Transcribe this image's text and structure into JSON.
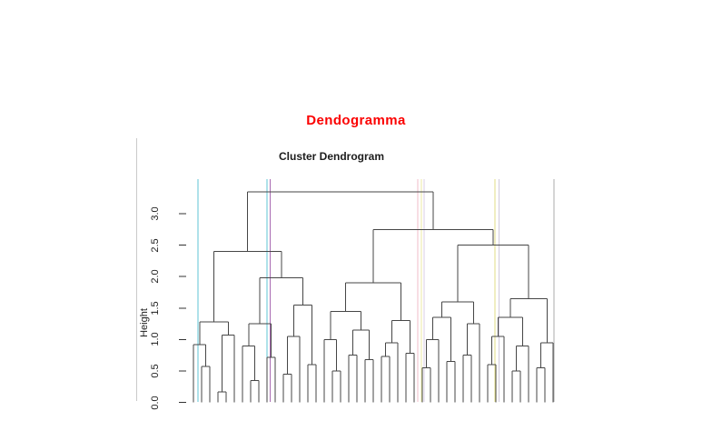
{
  "page": {
    "red_title": "Dendogramma"
  },
  "plot": {
    "title": "Cluster Dendrogram",
    "ylabel": "Height"
  },
  "chart_data": {
    "type": "dendrogram",
    "title": "Cluster Dendrogram",
    "ylabel": "Height",
    "ylim": [
      0,
      3.5
    ],
    "yticks": [
      0,
      0.5,
      1,
      1.5,
      2,
      2.5,
      3
    ],
    "ytick_labels": [
      "0.0",
      "0.5",
      "1.0",
      "1.5",
      "2.0",
      "2.5",
      "3.0"
    ],
    "n_leaves": 45,
    "leaf_labels_visible": false,
    "grid": false,
    "line_color": "#464646",
    "tick_color": "#333333",
    "title_color": "#1c1c1c",
    "red_heading_color": "#fb0000",
    "root_height": 3.35,
    "tree": {
      "h": 3.35,
      "c": [
        {
          "h": 2.4,
          "c": [
            {
              "h": 1.28,
              "c": [
                {
                  "h": 0.92,
                  "c": [
                    1,
                    {
                      "h": 0.57,
                      "c": [
                        2,
                        3
                      ]
                    }
                  ]
                },
                {
                  "h": 1.07,
                  "c": [
                    {
                      "h": 0.17,
                      "c": [
                        4,
                        5
                      ]
                    },
                    6
                  ]
                }
              ]
            },
            {
              "h": 1.98,
              "c": [
                {
                  "h": 1.25,
                  "c": [
                    {
                      "h": 0.9,
                      "c": [
                        7,
                        {
                          "h": 0.35,
                          "c": [
                            8,
                            9
                          ]
                        }
                      ]
                    },
                    {
                      "h": 0.72,
                      "c": [
                        10,
                        11
                      ]
                    }
                  ]
                },
                {
                  "h": 1.55,
                  "c": [
                    {
                      "h": 1.05,
                      "c": [
                        {
                          "h": 0.45,
                          "c": [
                            12,
                            13
                          ]
                        },
                        14
                      ]
                    },
                    {
                      "h": 0.6,
                      "c": [
                        15,
                        16
                      ]
                    }
                  ]
                }
              ]
            }
          ]
        },
        {
          "h": 2.75,
          "c": [
            {
              "h": 1.9,
              "c": [
                {
                  "h": 1.45,
                  "c": [
                    {
                      "h": 1.0,
                      "c": [
                        17,
                        {
                          "h": 0.5,
                          "c": [
                            18,
                            19
                          ]
                        }
                      ]
                    },
                    {
                      "h": 1.15,
                      "c": [
                        {
                          "h": 0.75,
                          "c": [
                            20,
                            21
                          ]
                        },
                        {
                          "h": 0.68,
                          "c": [
                            22,
                            23
                          ]
                        }
                      ]
                    }
                  ]
                },
                {
                  "h": 1.3,
                  "c": [
                    {
                      "h": 0.95,
                      "c": [
                        {
                          "h": 0.73,
                          "c": [
                            24,
                            25
                          ]
                        },
                        26
                      ]
                    },
                    {
                      "h": 0.78,
                      "c": [
                        27,
                        28
                      ]
                    }
                  ]
                }
              ]
            },
            {
              "h": 2.5,
              "c": [
                {
                  "h": 1.6,
                  "c": [
                    {
                      "h": 1.35,
                      "c": [
                        {
                          "h": 1.0,
                          "c": [
                            {
                              "h": 0.55,
                              "c": [
                                29,
                                30
                              ]
                            },
                            31
                          ]
                        },
                        {
                          "h": 0.65,
                          "c": [
                            32,
                            33
                          ]
                        }
                      ]
                    },
                    {
                      "h": 1.25,
                      "c": [
                        {
                          "h": 0.75,
                          "c": [
                            34,
                            35
                          ]
                        },
                        36
                      ]
                    }
                  ]
                },
                {
                  "h": 1.65,
                  "c": [
                    {
                      "h": 1.35,
                      "c": [
                        {
                          "h": 1.05,
                          "c": [
                            {
                              "h": 0.6,
                              "c": [
                                37,
                                38
                              ]
                            },
                            39
                          ]
                        },
                        {
                          "h": 0.9,
                          "c": [
                            {
                              "h": 0.5,
                              "c": [
                                40,
                                41
                              ]
                            },
                            42
                          ]
                        }
                      ]
                    },
                    {
                      "h": 0.95,
                      "c": [
                        {
                          "h": 0.55,
                          "c": [
                            43,
                            44
                          ]
                        },
                        45
                      ]
                    }
                  ]
                }
              ]
            }
          ]
        }
      ]
    },
    "cut_lines": [
      {
        "x": 1.56,
        "color": "#5fc6d6"
      },
      {
        "x": 10.0,
        "color": "#5fc6d6"
      },
      {
        "x": 10.39,
        "color": "#a96bb2"
      },
      {
        "x": 28.44,
        "color": "#f2bcc9"
      },
      {
        "x": 28.87,
        "color": "#ece9a6"
      },
      {
        "x": 29.2,
        "color": "#d9cde6"
      },
      {
        "x": 37.89,
        "color": "#e2dd84"
      },
      {
        "x": 38.4,
        "color": "#cfc9db"
      },
      {
        "x": 45.11,
        "color": "#ababab"
      }
    ]
  }
}
